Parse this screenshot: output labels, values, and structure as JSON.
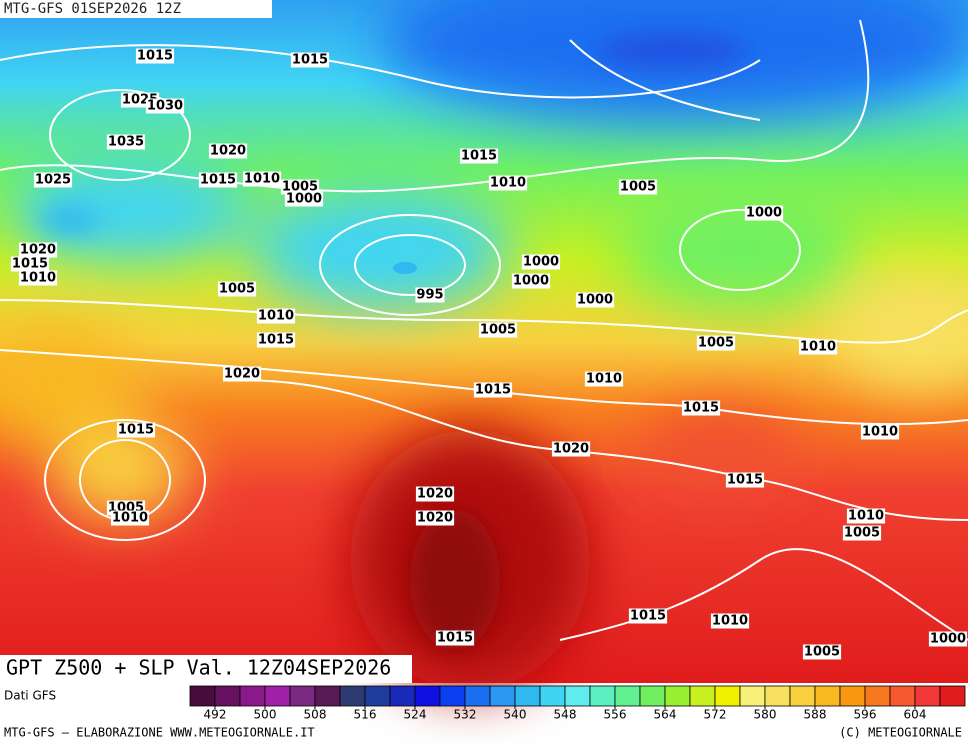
{
  "header": {
    "title": "MTG-GFS 01SEP2026 12Z"
  },
  "map": {
    "subtitle": "GPT Z500 + SLP Val. 12Z04SEP2026",
    "isobar_labels": [
      1015,
      1015,
      1025,
      1030,
      1035,
      1020,
      1025,
      1015,
      1010,
      1005,
      1000,
      1015,
      1010,
      1005,
      1000,
      1020,
      1015,
      1010,
      1000,
      1000,
      1005,
      995,
      1000,
      1010,
      1005,
      1015,
      1005,
      1010,
      1020,
      1010,
      1015,
      1015,
      1015,
      1010,
      1020,
      1015,
      1020,
      1005,
      1010,
      1020,
      1010,
      1005,
      1015,
      1010,
      1015,
      1000,
      1005
    ]
  },
  "legend": {
    "source": "Dati GFS",
    "lim": [
      488,
      612
    ],
    "colors": [
      "#4a0c3c",
      "#661060",
      "#8a1a8a",
      "#a020a8",
      "#7a2a80",
      "#5a1a58",
      "#2e3a72",
      "#203c9c",
      "#1a2ab8",
      "#1010e0",
      "#0a40f0",
      "#1a70f0",
      "#2a98f0",
      "#30b8f0",
      "#40d4f4",
      "#60ecec",
      "#5cf0c0",
      "#60f090",
      "#70f060",
      "#98f030",
      "#c8f020",
      "#f0f000",
      "#f8f078",
      "#f8e060",
      "#f8d040",
      "#f8b820",
      "#f89810",
      "#f87820",
      "#f85830",
      "#f03838",
      "#e01c1c"
    ],
    "ticks": [
      492,
      500,
      508,
      516,
      524,
      532,
      540,
      548,
      556,
      564,
      572,
      580,
      588,
      596,
      604
    ]
  },
  "footer": {
    "left": "MTG-GFS — ELABORAZIONE WWW.METEOGIORNALE.IT",
    "right": "(C) METEOGIORNALE"
  }
}
